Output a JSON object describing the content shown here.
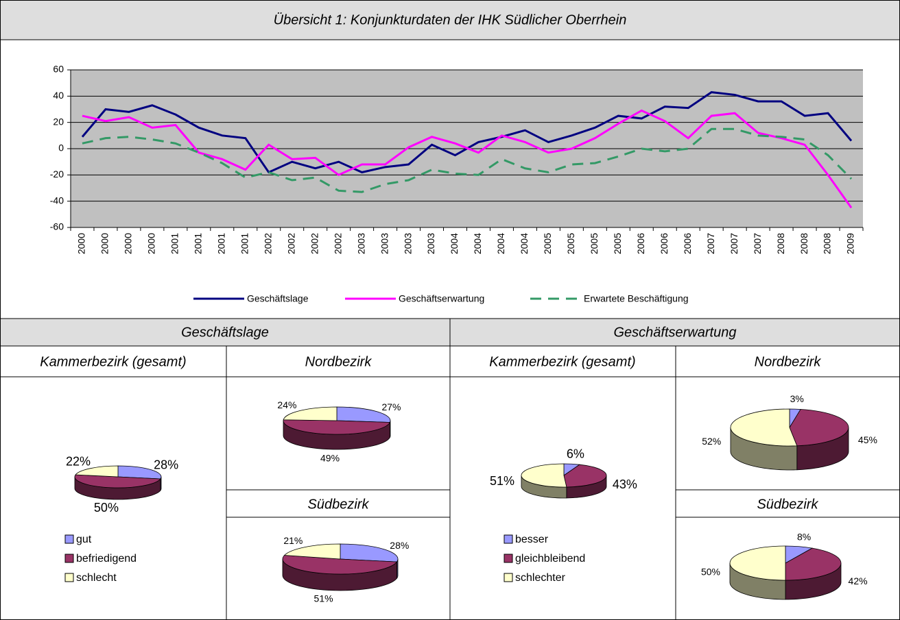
{
  "title": "Übersicht 1: Konjunkturdaten der IHK Südlicher Oberrhein",
  "sections": [
    {
      "title": "Geschäftslage"
    },
    {
      "title": "Geschäftserwartung"
    }
  ],
  "chart_data": [
    {
      "type": "line",
      "categories": [
        "2000",
        "2000",
        "2000",
        "2000",
        "2001",
        "2001",
        "2001",
        "2001",
        "2002",
        "2002",
        "2002",
        "2002",
        "2003",
        "2003",
        "2003",
        "2003",
        "2004",
        "2004",
        "2004",
        "2004",
        "2005",
        "2005",
        "2005",
        "2005",
        "2006",
        "2006",
        "2006",
        "2007",
        "2007",
        "2007",
        "2008",
        "2008",
        "2008",
        "2009"
      ],
      "series": [
        {
          "name": "Geschäftslage",
          "color": "#000080",
          "style": "solid",
          "values": [
            9,
            30,
            28,
            33,
            26,
            16,
            10,
            8,
            -18,
            -10,
            -15,
            -10,
            -18,
            -14,
            -12,
            3,
            -5,
            5,
            9,
            14,
            5,
            10,
            16,
            25,
            23,
            32,
            31,
            43,
            41,
            36,
            36,
            25,
            27,
            6
          ]
        },
        {
          "name": "Geschäftserwartung",
          "color": "#ff00ff",
          "style": "solid",
          "values": [
            25,
            21,
            24,
            16,
            18,
            -3,
            -8,
            -16,
            3,
            -8,
            -7,
            -20,
            -12,
            -12,
            1,
            9,
            4,
            -3,
            10,
            5,
            -3,
            0,
            8,
            19,
            29,
            21,
            8,
            25,
            27,
            12,
            8,
            3,
            -20,
            -45
          ]
        },
        {
          "name": "Erwartete Beschäftigung",
          "color": "#339966",
          "style": "dashed",
          "values": [
            4,
            8,
            9,
            7,
            4,
            -3,
            -11,
            -22,
            -18,
            -24,
            -22,
            -32,
            -33,
            -27,
            -24,
            -16,
            -19,
            -20,
            -8,
            -15,
            -18,
            -12,
            -11,
            -6,
            0,
            -2,
            0,
            15,
            15,
            10,
            9,
            7,
            -5,
            -23
          ]
        }
      ],
      "ylim": [
        -60,
        60
      ],
      "yticks": [
        -60,
        -40,
        -20,
        0,
        20,
        40,
        60
      ],
      "grid": true,
      "legend": "bottom"
    },
    {
      "type": "pie",
      "section": 0,
      "title": "Kammerbezirk (gesamt)",
      "categories": [
        "gut",
        "befriedigend",
        "schlecht"
      ],
      "colors": [
        "#9999ff",
        "#993366",
        "#ffffcc"
      ],
      "values": [
        28,
        50,
        22
      ],
      "value_labels": [
        "28%",
        "50%",
        "22%"
      ],
      "legend": true
    },
    {
      "type": "pie",
      "section": 0,
      "title": "Nordbezirk",
      "categories": [
        "gut",
        "befriedigend",
        "schlecht"
      ],
      "colors": [
        "#9999ff",
        "#993366",
        "#ffffcc"
      ],
      "values": [
        27,
        49,
        24
      ],
      "value_labels": [
        "27%",
        "49%",
        "24%"
      ],
      "legend": false
    },
    {
      "type": "pie",
      "section": 0,
      "title": "Südbezirk",
      "categories": [
        "gut",
        "befriedigend",
        "schlecht"
      ],
      "colors": [
        "#9999ff",
        "#993366",
        "#ffffcc"
      ],
      "values": [
        28,
        51,
        21
      ],
      "value_labels": [
        "28%",
        "51%",
        "21%"
      ],
      "legend": false
    },
    {
      "type": "pie",
      "section": 1,
      "title": "Kammerbezirk (gesamt)",
      "categories": [
        "besser",
        "gleichbleibend",
        "schlechter"
      ],
      "colors": [
        "#9999ff",
        "#993366",
        "#ffffcc"
      ],
      "values": [
        6,
        43,
        51
      ],
      "value_labels": [
        "6%",
        "43%",
        "51%"
      ],
      "legend": true
    },
    {
      "type": "pie",
      "section": 1,
      "title": "Nordbezirk",
      "categories": [
        "besser",
        "gleichbleibend",
        "schlechter"
      ],
      "colors": [
        "#9999ff",
        "#993366",
        "#ffffcc"
      ],
      "values": [
        3,
        45,
        52
      ],
      "value_labels": [
        "3%",
        "45%",
        "52%"
      ],
      "legend": false
    },
    {
      "type": "pie",
      "section": 1,
      "title": "Südbezirk",
      "categories": [
        "besser",
        "gleichbleibend",
        "schlechter"
      ],
      "colors": [
        "#9999ff",
        "#993366",
        "#ffffcc"
      ],
      "values": [
        8,
        42,
        50
      ],
      "value_labels": [
        "8%",
        "42%",
        "50%"
      ],
      "legend": false
    }
  ]
}
